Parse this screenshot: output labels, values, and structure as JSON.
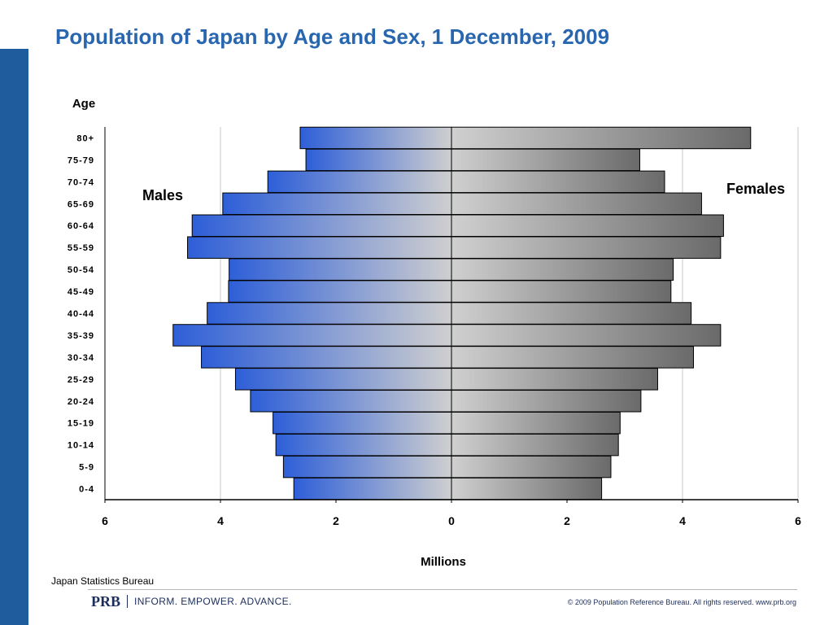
{
  "slide": {
    "title": "Population of Japan by Age and Sex, 1 December, 2009",
    "source": "Japan Statistics Bureau",
    "brand": "PRB",
    "tagline": "INFORM. EMPOWER. ADVANCE.",
    "copyright": "© 2009 Population Reference Bureau. All rights reserved. www.prb.org",
    "accent_color": "#1f5c9e",
    "title_color": "#2866b0"
  },
  "chart_data": {
    "type": "bar",
    "orientation": "horizontal-population-pyramid",
    "ylabel": "Age",
    "xlabel": "Millions",
    "xlim": [
      -6,
      6
    ],
    "x_ticks": [
      "6",
      "4",
      "2",
      "0",
      "2",
      "4",
      "6"
    ],
    "grid": true,
    "categories": [
      "80+",
      "75-79",
      "70-74",
      "65-69",
      "60-64",
      "55-59",
      "50-54",
      "45-49",
      "40-44",
      "35-39",
      "30-34",
      "25-29",
      "20-24",
      "15-19",
      "10-14",
      "5-9",
      "0-4"
    ],
    "series": [
      {
        "name": "Males",
        "color": "#2a5bd6",
        "values": [
          2.62,
          2.52,
          3.18,
          3.96,
          4.49,
          4.57,
          3.85,
          3.86,
          4.23,
          4.82,
          4.33,
          3.74,
          3.48,
          3.09,
          3.04,
          2.91,
          2.73
        ]
      },
      {
        "name": "Females",
        "color": "#6e6e6e",
        "values": [
          5.18,
          3.26,
          3.69,
          4.33,
          4.71,
          4.66,
          3.84,
          3.8,
          4.15,
          4.66,
          4.19,
          3.57,
          3.28,
          2.92,
          2.89,
          2.76,
          2.6
        ]
      }
    ]
  }
}
